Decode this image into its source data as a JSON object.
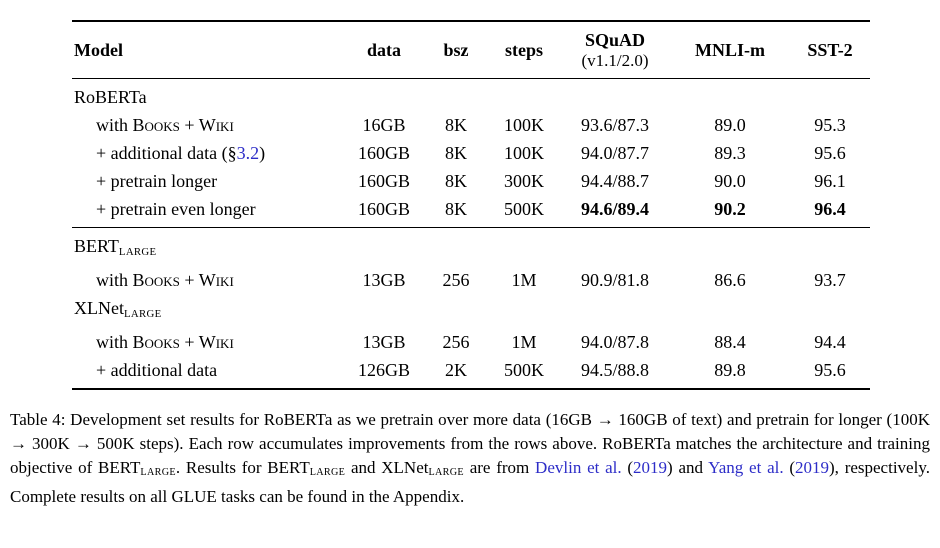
{
  "colors": {
    "link_blue": "#2d2dc8",
    "text": "#000000",
    "rule": "#000000"
  },
  "table": {
    "columns": [
      {
        "label": "Model"
      },
      {
        "label": "data"
      },
      {
        "label": "bsz"
      },
      {
        "label": "steps"
      },
      {
        "label": "SQuAD",
        "sublabel": "(v1.1/2.0)"
      },
      {
        "label": "MNLI-m"
      },
      {
        "label": "SST-2"
      }
    ],
    "sections": [
      {
        "name": "roberta",
        "rows": [
          {
            "kind": "group",
            "label": [
              {
                "t": "RoBERTa"
              }
            ]
          },
          {
            "kind": "data",
            "indent": true,
            "label": [
              {
                "t": "with "
              },
              {
                "t": "Books + Wiki",
                "sc": true
              }
            ],
            "cells": [
              "16GB",
              "8K",
              "100K",
              "93.6/87.3",
              "89.0",
              "95.3"
            ]
          },
          {
            "kind": "data",
            "indent": true,
            "label": [
              {
                "t": "+ additional data (§"
              },
              {
                "t": "3.2",
                "link": true
              },
              {
                "t": ")"
              }
            ],
            "cells": [
              "160GB",
              "8K",
              "100K",
              "94.0/87.7",
              "89.3",
              "95.6"
            ]
          },
          {
            "kind": "data",
            "indent": true,
            "label": [
              {
                "t": "+ pretrain longer"
              }
            ],
            "cells": [
              "160GB",
              "8K",
              "300K",
              "94.4/88.7",
              "90.0",
              "96.1"
            ]
          },
          {
            "kind": "data",
            "indent": true,
            "label": [
              {
                "t": "+ pretrain even longer"
              }
            ],
            "cells": [
              "160GB",
              "8K",
              "500K",
              "94.6/89.4",
              "90.2",
              "96.4"
            ],
            "bold": [
              3,
              4,
              5
            ]
          }
        ]
      },
      {
        "name": "baselines",
        "rows": [
          {
            "kind": "group",
            "label": [
              {
                "t": "BERT"
              },
              {
                "t": "LARGE",
                "sub": true
              }
            ]
          },
          {
            "kind": "data",
            "indent": true,
            "label": [
              {
                "t": "with "
              },
              {
                "t": "Books + Wiki",
                "sc": true
              }
            ],
            "cells": [
              "13GB",
              "256",
              "1M",
              "90.9/81.8",
              "86.6",
              "93.7"
            ]
          },
          {
            "kind": "group",
            "label": [
              {
                "t": "XLNet"
              },
              {
                "t": "LARGE",
                "sub": true
              }
            ]
          },
          {
            "kind": "data",
            "indent": true,
            "label": [
              {
                "t": "with "
              },
              {
                "t": "Books + Wiki",
                "sc": true
              }
            ],
            "cells": [
              "13GB",
              "256",
              "1M",
              "94.0/87.8",
              "88.4",
              "94.4"
            ]
          },
          {
            "kind": "data",
            "indent": true,
            "label": [
              {
                "t": "+ additional data"
              }
            ],
            "cells": [
              "126GB",
              "2K",
              "500K",
              "94.5/88.8",
              "89.8",
              "95.6"
            ]
          }
        ]
      }
    ]
  },
  "caption": {
    "parts": [
      {
        "t": "Table 4: Development set results for RoBERTa as we pretrain over more data (16GB → 160GB of text) and pretrain for longer (100K → 300K → 500K steps). Each row accumulates improvements from the rows above. RoBERTa matches the architecture and training objective of BERT"
      },
      {
        "t": "LARGE",
        "sub": true
      },
      {
        "t": ". Results for BERT"
      },
      {
        "t": "LARGE",
        "sub": true
      },
      {
        "t": " and XLNet"
      },
      {
        "t": "LARGE",
        "sub": true
      },
      {
        "t": " are from "
      },
      {
        "t": "Devlin et al.",
        "link": true
      },
      {
        "t": " ("
      },
      {
        "t": "2019",
        "link": true
      },
      {
        "t": ") and "
      },
      {
        "t": "Yang et al.",
        "link": true
      },
      {
        "t": " ("
      },
      {
        "t": "2019",
        "link": true
      },
      {
        "t": "), respectively. Complete results on all GLUE tasks can be found in the Appendix."
      }
    ]
  }
}
